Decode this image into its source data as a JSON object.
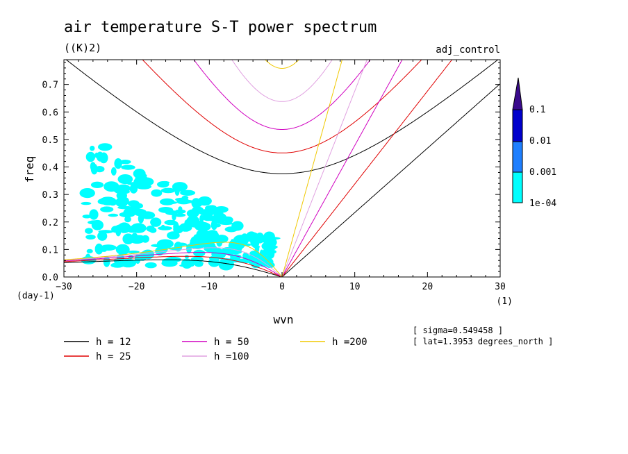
{
  "chart_data": {
    "type": "line",
    "title": "air temperature S-T power spectrum",
    "units": "((K)2)",
    "experiment": "adj_control",
    "xlabel": "wvn",
    "xunits": "(1)",
    "ylabel": "freq",
    "yunits": "(day-1)",
    "xlim": [
      -30,
      30
    ],
    "ylim": [
      0,
      0.79
    ],
    "xticks": [
      -30,
      -20,
      -10,
      0,
      10,
      20,
      30
    ],
    "yticks": [
      0.0,
      0.1,
      0.2,
      0.3,
      0.4,
      0.5,
      0.6,
      0.7
    ],
    "ytick_labels": [
      "0.0",
      "0.1",
      "0.2",
      "0.3",
      "0.4",
      "0.5",
      "0.6",
      "0.7"
    ],
    "colorbar": {
      "labels": [
        "0.1",
        "0.01",
        "0.001",
        "1e-04"
      ],
      "colors": [
        "#00ffff",
        "#1e7fff",
        "#0000cc",
        "#3f1fb0",
        "#3a0a8c"
      ]
    },
    "series": [
      {
        "name": "h = 12",
        "h": 12,
        "color": "#000000"
      },
      {
        "name": "h = 25",
        "h": 25,
        "color": "#e00000"
      },
      {
        "name": "h = 50",
        "h": 50,
        "color": "#d000c0"
      },
      {
        "name": "h =100",
        "h": 100,
        "color": "#e0a0e0"
      },
      {
        "name": "h =200",
        "h": 200,
        "color": "#f0c800"
      }
    ],
    "contour_fill_color": "#00ffff"
  },
  "annotations": {
    "sigma": "[ sigma=0.549458 ]",
    "lat": "[ lat=1.3953 degrees_north ]"
  }
}
